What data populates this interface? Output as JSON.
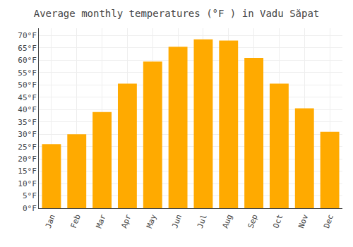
{
  "chart_data": {
    "type": "bar",
    "title": "Average monthly temperatures (°F ) in Vadu Săpat",
    "categories": [
      "Jan",
      "Feb",
      "Mar",
      "Apr",
      "May",
      "Jun",
      "Jul",
      "Aug",
      "Sep",
      "Oct",
      "Nov",
      "Dec"
    ],
    "values": [
      26,
      30,
      39,
      50.5,
      59.5,
      65.5,
      68.5,
      68,
      61,
      50.5,
      40.5,
      31
    ],
    "color": "#FFAA00",
    "ylim": [
      0,
      73
    ],
    "yticks": [
      {
        "value": 0,
        "label": "0°F"
      },
      {
        "value": 5,
        "label": "5°F"
      },
      {
        "value": 10,
        "label": "10°F"
      },
      {
        "value": 15,
        "label": "15°F"
      },
      {
        "value": 20,
        "label": "20°F"
      },
      {
        "value": 25,
        "label": "25°F"
      },
      {
        "value": 30,
        "label": "30°F"
      },
      {
        "value": 35,
        "label": "35°F"
      },
      {
        "value": 40,
        "label": "40°F"
      },
      {
        "value": 45,
        "label": "45°F"
      },
      {
        "value": 50,
        "label": "50°F"
      },
      {
        "value": 55,
        "label": "55°F"
      },
      {
        "value": 60,
        "label": "60°F"
      },
      {
        "value": 65,
        "label": "65°F"
      },
      {
        "value": 70,
        "label": "70°F"
      }
    ],
    "grid": true
  }
}
